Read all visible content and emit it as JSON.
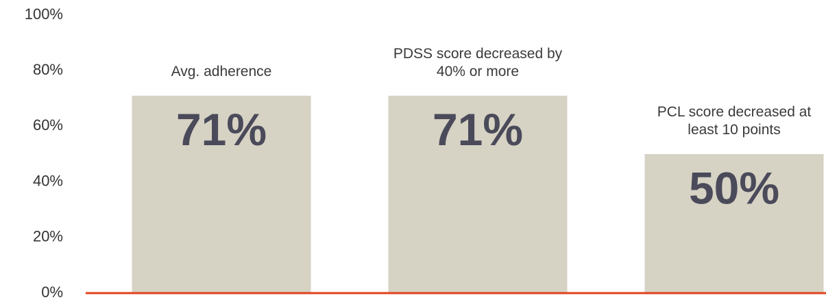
{
  "chart_data": {
    "type": "bar",
    "categories": [
      "Avg. adherence",
      "PDSS score decreased by 40% or more",
      "PCL score decreased at least 10 points"
    ],
    "values": [
      71,
      71,
      50
    ],
    "value_labels": [
      "71%",
      "71%",
      "50%"
    ],
    "color": "#d6d2c4",
    "baseline_color": "#e2401c",
    "ylim": [
      0,
      100
    ],
    "yticks": [
      {
        "value": 0,
        "label": "0%"
      },
      {
        "value": 20,
        "label": "20%"
      },
      {
        "value": 40,
        "label": "40%"
      },
      {
        "value": 60,
        "label": "60%"
      },
      {
        "value": 80,
        "label": "80%"
      },
      {
        "value": 100,
        "label": "100%"
      }
    ],
    "grid": false
  }
}
